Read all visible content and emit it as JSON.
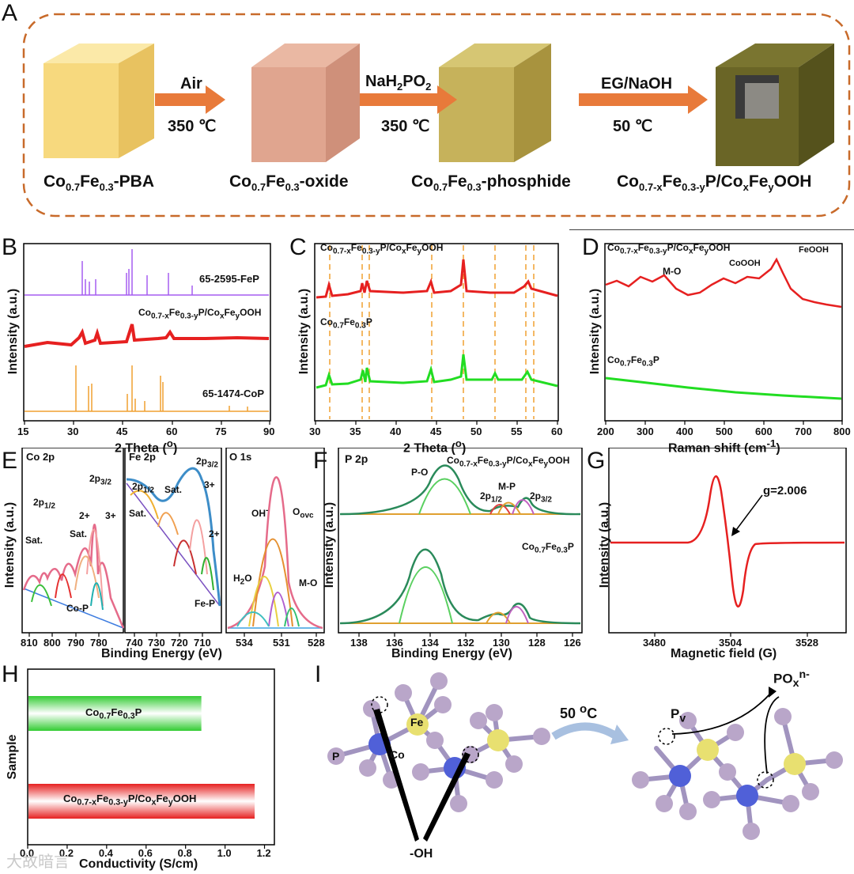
{
  "panels": {
    "A": {
      "label": "A",
      "steps": [
        {
          "name_pre": "Co",
          "name_sub1": "0.7",
          "name_mid": "Fe",
          "name_sub2": "0.3",
          "name_post": "-PBA"
        },
        {
          "name_pre": "Co",
          "name_sub1": "0.7",
          "name_mid": "Fe",
          "name_sub2": "0.3",
          "name_post": "-oxide"
        },
        {
          "name_pre": "Co",
          "name_sub1": "0.7",
          "name_mid": "Fe",
          "name_sub2": "0.3",
          "name_post": "-phosphide"
        },
        {
          "name_text": "Co0.7-xFe0.3-yP/CoxFeyOOH"
        }
      ],
      "arrows": [
        {
          "top": "Air",
          "bottom": "350 ℃"
        },
        {
          "top": "NaH2PO2",
          "bottom": "350 ℃"
        },
        {
          "top": "EG/NaOH",
          "bottom": "50 ℃"
        }
      ],
      "colors": {
        "frame": "#c86a2a",
        "arrow": "#e87a3a",
        "cube1": "#f5d77a",
        "cube2": "#e3a58f",
        "cube3": "#c9b55a",
        "cube4": "#6e6a2a"
      }
    },
    "B": {
      "label": "B",
      "ylabel": "Intensity (a.u.)",
      "xlabel": "2 Theta (°)",
      "ticks": [
        "15",
        "30",
        "45",
        "60",
        "75",
        "90"
      ],
      "traces": [
        "65-2595-FeP",
        "Co0.7-xFe0.3-yP/CoxFeyOOH",
        "65-1474-CoP"
      ]
    },
    "C": {
      "label": "C",
      "ylabel": "Intensity (a.u.)",
      "xlabel": "2 Theta (°)",
      "ticks": [
        "30",
        "35",
        "40",
        "45",
        "50",
        "55",
        "60"
      ],
      "traces": [
        "Co0.7-xFe0.3-yP/CoxFeyOOH",
        "Co0.7Fe0.3P"
      ]
    },
    "D": {
      "label": "D",
      "ylabel": "Intensity (a.u.)",
      "xlabel": "Raman shift (cm-1)",
      "ticks": [
        "200",
        "300",
        "400",
        "500",
        "600",
        "700",
        "800"
      ],
      "traces": [
        "Co0.7-xFe0.3-yP/CoxFeyOOH",
        "Co0.7Fe0.3P"
      ],
      "annotations": [
        "M-O",
        "CoOOH",
        "FeOOH"
      ]
    },
    "E": {
      "label": "E",
      "ylabel": "Intensity (a.u.)",
      "xlabel": "Binding Energy (eV)",
      "sub": [
        {
          "title": "Co 2p",
          "ticks": [
            "810",
            "800",
            "790",
            "780"
          ],
          "annotations": [
            "2p3/2",
            "2p1/2",
            "2+",
            "3+",
            "Sat.",
            "Co-P"
          ]
        },
        {
          "title": "Fe 2p",
          "ticks": [
            "740",
            "730",
            "720",
            "710"
          ],
          "annotations": [
            "2p3/2",
            "2p1/2",
            "Sat.",
            "3+",
            "2+",
            "Fe-P"
          ]
        },
        {
          "title": "O 1s",
          "ticks": [
            "534",
            "531",
            "528"
          ],
          "annotations": [
            "OH-",
            "Oovc",
            "H2O",
            "M-O"
          ]
        }
      ]
    },
    "F": {
      "label": "F",
      "ylabel": "Intensity (a.u.)",
      "xlabel": "Binding Energy (eV)",
      "title": "P 2p",
      "ticks": [
        "138",
        "136",
        "134",
        "132",
        "130",
        "128",
        "126"
      ],
      "traces": [
        "Co0.7-xFe0.3-yP/CoxFeyOOH",
        "Co0.7Fe0.3P"
      ],
      "annotations": [
        "P-O",
        "M-P",
        "2p1/2",
        "2p3/2"
      ]
    },
    "G": {
      "label": "G",
      "ylabel": "Intensity (a.u.)",
      "xlabel": "Magnetic field (G)",
      "ticks": [
        "3480",
        "3504",
        "3528"
      ],
      "annotation": "g=2.006"
    },
    "H": {
      "label": "H",
      "ylabel": "Sample",
      "xlabel": "Conductivity (S/cm)",
      "ticks": [
        "0.0",
        "0.2",
        "0.4",
        "0.6",
        "0.8",
        "1.0",
        "1.2"
      ]
    },
    "I": {
      "label": "I",
      "arrow_text": "50 oC",
      "labels": [
        "Fe",
        "Co",
        "P",
        "-OH",
        "Pv",
        "POxn-"
      ]
    }
  },
  "chart_data": [
    {
      "type": "bar",
      "title": "",
      "xlabel": "Conductivity (S/cm)",
      "ylabel": "Sample",
      "categories": [
        "Co0.7Fe0.3P",
        "Co0.7-xFe0.3-yP/CoxFeyOOH"
      ],
      "values": [
        0.88,
        1.15
      ],
      "xlim": [
        0,
        1.25
      ],
      "orientation": "horizontal",
      "colors": [
        "#33cc33",
        "#e62020"
      ]
    }
  ],
  "watermark": "大故暗言"
}
